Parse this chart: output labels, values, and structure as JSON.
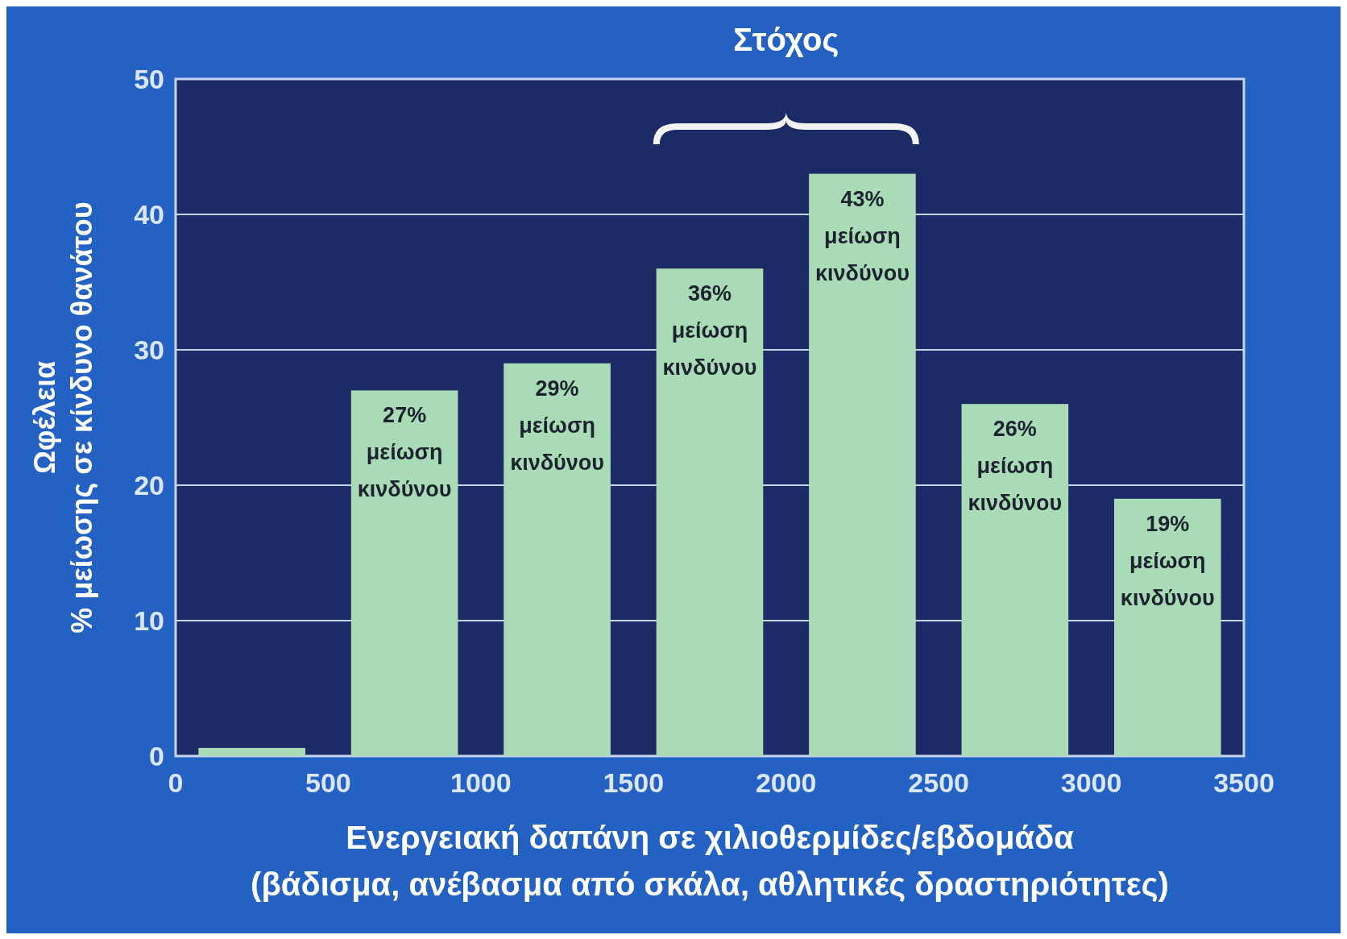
{
  "chart_data": {
    "type": "bar",
    "ylabel": "Ωφέλεια\n% μείωσης σε κίνδυνο θανάτου",
    "xlabel": "Ενεργειακή δαπάνη σε χιλιοθερμίδες/εβδομάδα\n(βάδισμα, ανέβασμα από σκάλα, αθλητικές δραστηριότητες)",
    "x": [
      250,
      750,
      1250,
      1750,
      2250,
      2750,
      3250
    ],
    "values": [
      0.6,
      27,
      29,
      36,
      43,
      26,
      19
    ],
    "color": "#a9dcb6",
    "value_labels": [
      null,
      "27%\nμείωση\nκινδύνου",
      "29%\nμείωση\nκινδύνου",
      "36%\nμείωση\nκινδύνου",
      "43%\nμείωση\nκινδύνου",
      "26%\nμείωση\nκινδύνου",
      "19%\nμείωση\nκινδύνου"
    ],
    "xlim": [
      0,
      3500
    ],
    "xticks": [
      0,
      500,
      1000,
      1500,
      2000,
      2500,
      3000,
      3500
    ],
    "ylim": [
      0,
      50
    ],
    "yticks": [
      0,
      10,
      20,
      30,
      40,
      50
    ],
    "grid": "y",
    "annotations": [
      "Στόχος"
    ]
  }
}
